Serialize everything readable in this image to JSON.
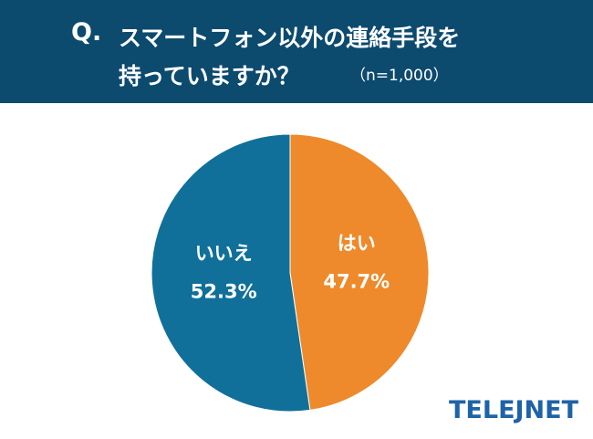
{
  "header": {
    "q_mark": "Q.",
    "line1": "スマートフォン以外の連絡手段を",
    "line2": "持っていますか？",
    "sample": "（n=1,000）"
  },
  "chart_data": {
    "type": "pie",
    "slices": [
      {
        "label": "はい",
        "value": 47.7,
        "value_label": "47.7%",
        "color": "#ee8a2b"
      },
      {
        "label": "いいえ",
        "value": 52.3,
        "value_label": "52.3%",
        "color": "#10709a"
      }
    ],
    "start": "12 o'clock",
    "direction": "clockwise"
  },
  "logo": {
    "text": "TELEJNET"
  },
  "colors": {
    "header_bg": "#0c4a6e",
    "logo": "#1e63a8"
  }
}
